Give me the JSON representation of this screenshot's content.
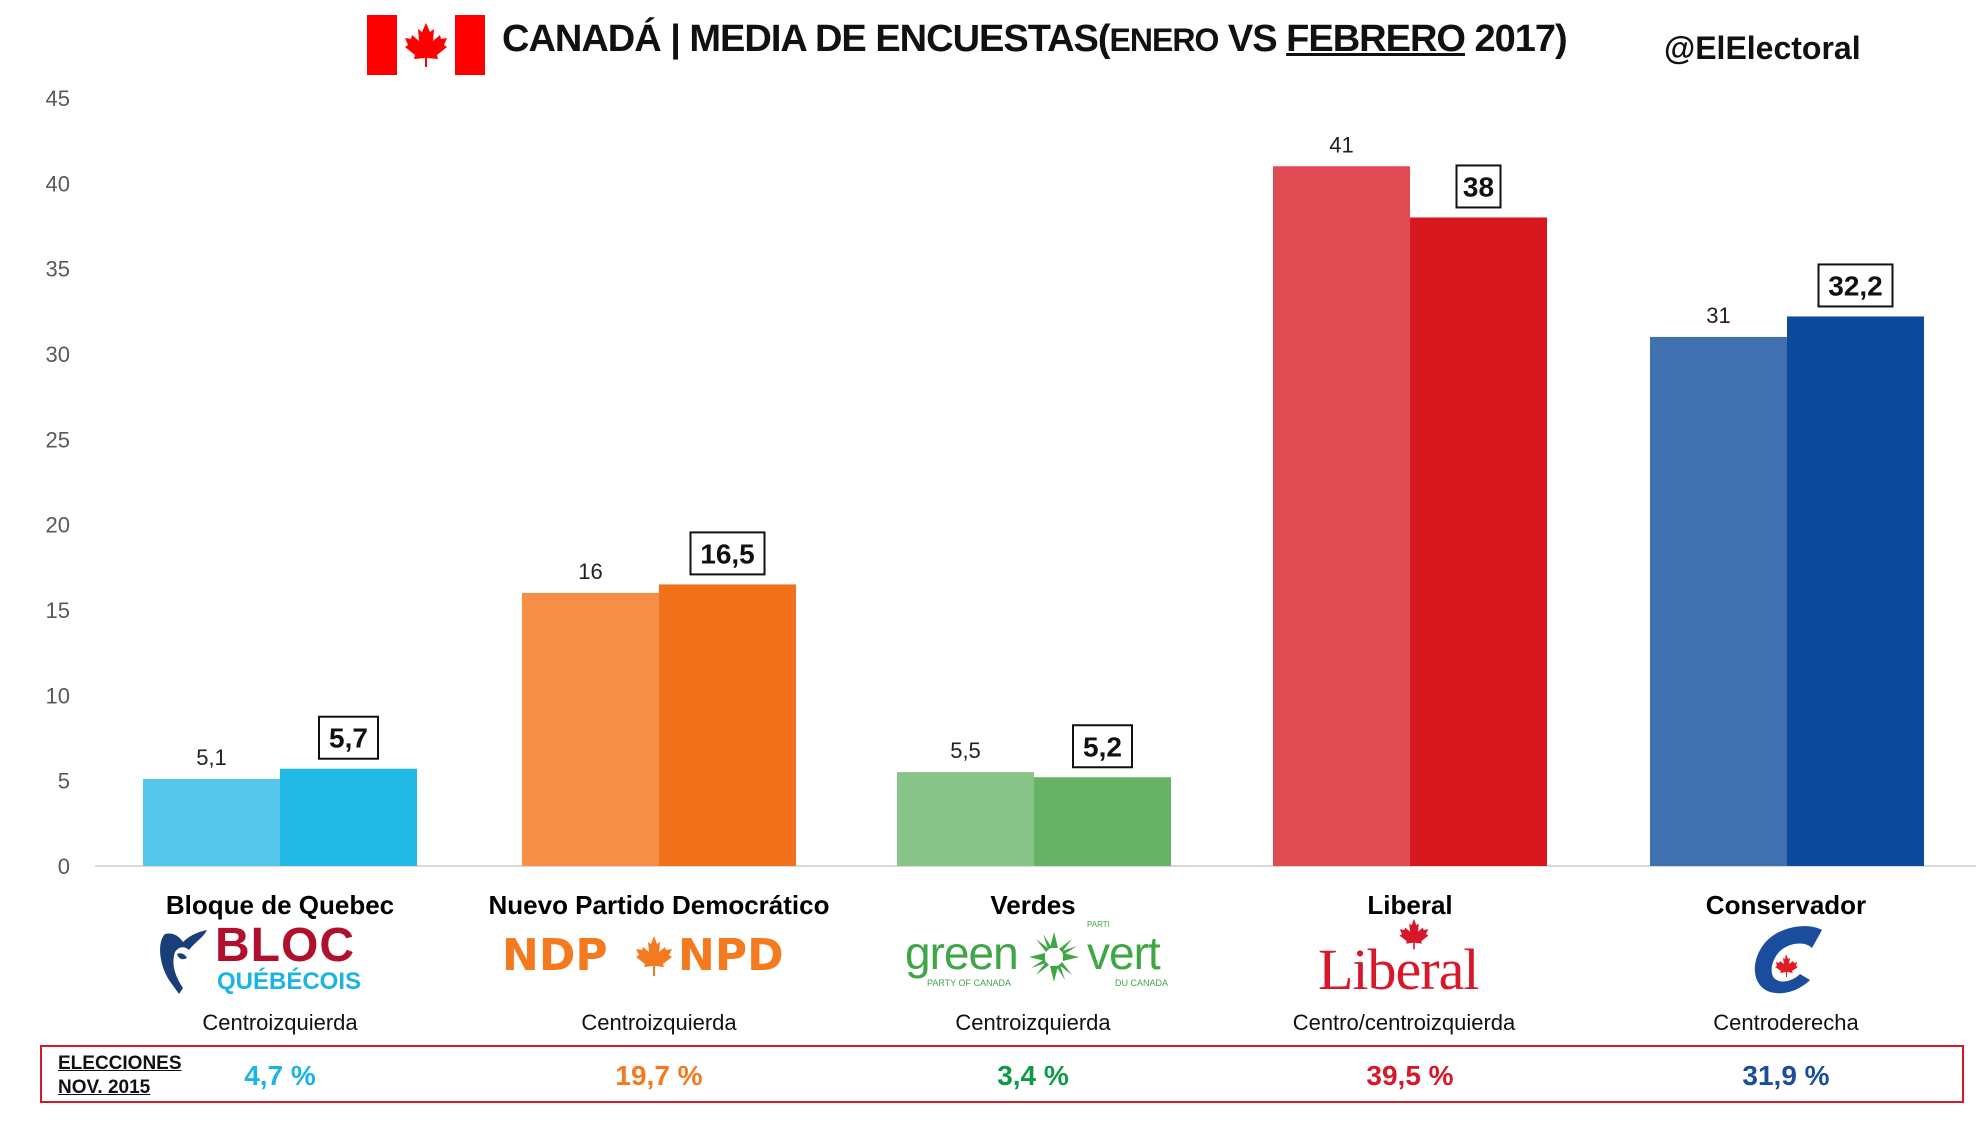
{
  "header": {
    "title_main": "CANADÁ | MEDIA DE ENCUESTAS",
    "title_paren_open": "(",
    "title_enero": "ENERO",
    "title_vs": " VS ",
    "title_febrero": "FEBRERO",
    "title_year": " 2017)",
    "handle": "@ElElectoral",
    "flag_icon": "canada-flag-icon"
  },
  "chart_data": {
    "type": "bar",
    "title": "CANADÁ | MEDIA DE ENCUESTAS (ENERO VS FEBRERO 2017)",
    "xlabel": "",
    "ylabel": "",
    "ylim": [
      0,
      45
    ],
    "yticks": [
      "0",
      "5",
      "10",
      "15",
      "20",
      "25",
      "30",
      "35",
      "40",
      "45"
    ],
    "ytick_values": [
      0,
      5,
      10,
      15,
      20,
      25,
      30,
      35,
      40,
      45
    ],
    "grid": false,
    "legend": "none",
    "categories": [
      "Bloque de Quebec",
      "Nuevo Partido Democrático",
      "Verdes",
      "Liberal",
      "Conservador"
    ],
    "series": [
      {
        "name": "Enero 2017",
        "values": [
          5.1,
          16,
          5.5,
          41,
          31
        ],
        "labels": [
          "5,1",
          "16",
          "5,5",
          "41",
          "31"
        ],
        "colors": [
          "#55C8EC",
          "#F58F45",
          "#88C487",
          "#E04A52",
          "#4170B0"
        ]
      },
      {
        "name": "Febrero 2017",
        "values": [
          5.7,
          16.5,
          5.2,
          38,
          32.2
        ],
        "labels": [
          "5,7",
          "16,5",
          "5,2",
          "38",
          "32,2"
        ],
        "colors": [
          "#23B9E6",
          "#F2711B",
          "#68B266",
          "#D8181F",
          "#0E4A9C"
        ]
      }
    ]
  },
  "parties": [
    {
      "name": "Bloque de Quebec",
      "ideology": "Centroizquierda",
      "logo": "bloc-quebecois-logo",
      "logo_text_1": "BLOC",
      "logo_text_2": "QUÉBÉCOIS",
      "election_2015": "4,7 %",
      "color": "#1CB4E3"
    },
    {
      "name": "Nuevo Partido Democrático",
      "ideology": "Centroizquierda",
      "logo": "ndp-logo",
      "logo_text_1": "NDP",
      "logo_text_2": "NPD",
      "election_2015": "19,7 %",
      "color": "#F47A20"
    },
    {
      "name": "Verdes",
      "ideology": "Centroizquierda",
      "logo": "green-party-logo",
      "logo_text_1": "green",
      "logo_text_2": "vert",
      "logo_sub_1": "PARTY OF CANADA",
      "logo_sub_2": "DU CANADA",
      "logo_parti": "PARTI",
      "election_2015": "3,4 %",
      "color": "#0E9A48"
    },
    {
      "name": "Liberal",
      "ideology": "Centro/centroizquierda",
      "logo": "liberal-party-logo",
      "logo_text_1": "Liberal",
      "election_2015": "39,5 %",
      "color": "#D7182A"
    },
    {
      "name": "Conservador",
      "ideology": "Centroderecha",
      "logo": "conservative-party-logo",
      "election_2015": "31,9 %",
      "color": "#1A4D9E"
    }
  ],
  "results": {
    "label_line1": "ELECCIONES",
    "label_line2": "NOV. 2015"
  }
}
